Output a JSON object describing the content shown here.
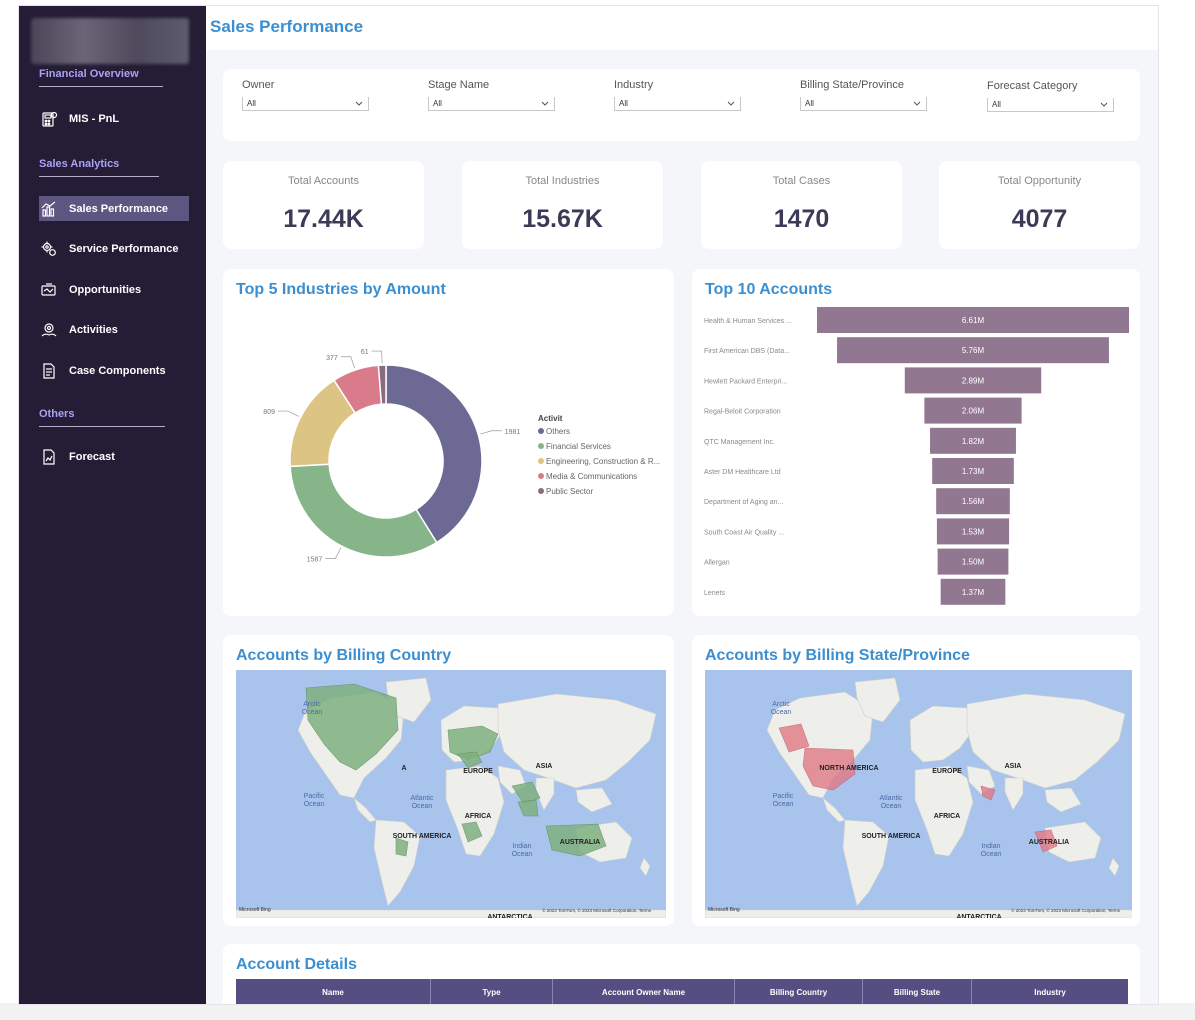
{
  "sidebar": {
    "sections": [
      {
        "title": "Financial Overview"
      },
      {
        "title": "Sales Analytics"
      },
      {
        "title": "Others"
      }
    ],
    "items": [
      {
        "label": "MIS - PnL",
        "icon": "calculator-icon"
      },
      {
        "label": "Sales Performance",
        "icon": "bar-chart-icon",
        "active": true
      },
      {
        "label": "Service Performance",
        "icon": "gears-icon"
      },
      {
        "label": "Opportunities",
        "icon": "handshake-icon"
      },
      {
        "label": "Activities",
        "icon": "gear-hand-icon"
      },
      {
        "label": "Case Components",
        "icon": "document-icon"
      },
      {
        "label": "Forecast",
        "icon": "forecast-icon"
      }
    ]
  },
  "header": {
    "title": "Sales Performance"
  },
  "filters": [
    {
      "label": "Owner",
      "value": "All"
    },
    {
      "label": "Stage Name",
      "value": "All"
    },
    {
      "label": "Industry",
      "value": "All"
    },
    {
      "label": "Billing State/Province",
      "value": "All"
    },
    {
      "label": "Forecast Category",
      "value": "All"
    }
  ],
  "kpis": [
    {
      "label": "Total Accounts",
      "value": "17.44K"
    },
    {
      "label": "Total Industries",
      "value": "15.67K"
    },
    {
      "label": "Total Cases",
      "value": "1470"
    },
    {
      "label": "Total Opportunity",
      "value": "4077"
    }
  ],
  "donut": {
    "title": "Top 5 Industries by Amount",
    "legend_title": "Activit",
    "chart_data": {
      "type": "pie",
      "categories": [
        "Others",
        "Financial Services",
        "Engineering, Construction & R...",
        "Media & Communications",
        "Public Sector"
      ],
      "values": [
        1981,
        1587,
        809,
        377,
        61
      ],
      "colors": [
        "#6c6a94",
        "#86b58a",
        "#dcc484",
        "#d97b8a",
        "#8c6a80"
      ]
    }
  },
  "funnel": {
    "title": "Top 10 Accounts",
    "chart_data": {
      "type": "bar",
      "categories": [
        "Health & Human Services ...",
        "First American DBS (Data...",
        "Hewlett Packard Enterpri...",
        "Regal-Beloit Corporation",
        "QTC Management Inc.",
        "Aster DM Healthcare Ltd",
        "Department of Aging an...",
        "South Coast Air Quality ...",
        "Allergan",
        "Lenets"
      ],
      "values": [
        6.61,
        5.76,
        2.89,
        2.06,
        1.82,
        1.73,
        1.56,
        1.53,
        1.5,
        1.37
      ],
      "value_labels": [
        "6.61M",
        "5.76M",
        "2.89M",
        "2.06M",
        "1.82M",
        "1.73M",
        "1.56M",
        "1.53M",
        "1.50M",
        "1.37M"
      ],
      "color": "#927791"
    }
  },
  "map_country": {
    "title": "Accounts by Billing Country",
    "labels": {
      "arctic": "Arctic Ocean",
      "pacific": "Pacific Ocean",
      "atlantic": "Atlantic Ocean",
      "indian": "Indian Ocean",
      "na": "A",
      "europe": "EUROPE",
      "asia": "ASIA",
      "africa": "AFRICA",
      "sa": "SOUTH AMERICA",
      "australia": "AUSTRALIA",
      "antarctica": "ANTARCTICA"
    },
    "attribution": "© 2023 TomTom, © 2023 Microsoft Corporation, Terms",
    "brand": "Microsoft Bing",
    "highlight_color": "#7fb07f"
  },
  "map_state": {
    "title": "Accounts by Billing State/Province",
    "labels": {
      "arctic": "Arctic Ocean",
      "pacific": "Pacific Ocean",
      "atlantic": "Atlantic Ocean",
      "indian": "Indian Ocean",
      "na": "NORTH AMERICA",
      "europe": "EUROPE",
      "asia": "ASIA",
      "africa": "AFRICA",
      "sa": "SOUTH AMERICA",
      "australia": "AUSTRALIA",
      "antarctica": "ANTARCTICA"
    },
    "attribution": "© 2023 TomTom, © 2023 Microsoft Corporation, Terms",
    "brand": "Microsoft Bing",
    "highlight_color": "#e07a86"
  },
  "account_details": {
    "title": "Account Details",
    "columns": [
      "Name",
      "Type",
      "Account Owner Name",
      "Billing Country",
      "Billing State",
      "Industry"
    ]
  },
  "colors": {
    "accent": "#3b8fd0",
    "sidebar": "#241d35",
    "active_item": "#5c5680",
    "table_header": "#554e82"
  }
}
